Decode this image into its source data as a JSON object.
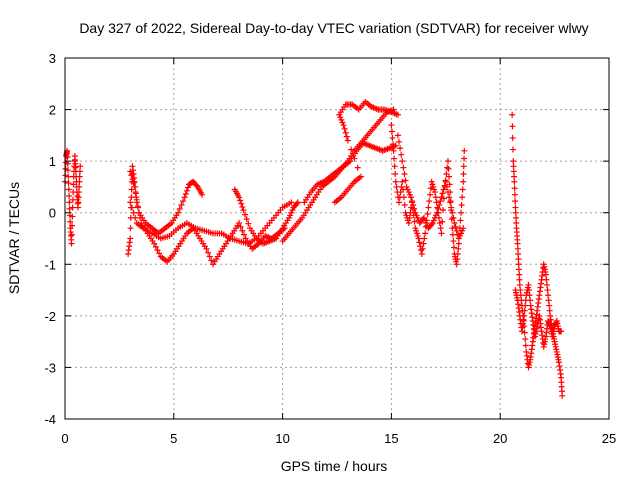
{
  "chart_data": {
    "type": "scatter",
    "title": "Day 327 of 2022, Sidereal Day-to-day VTEC variation (SDTVAR) for receiver wlwy",
    "xlabel": "GPS time / hours",
    "ylabel": "SDTVAR / TECUs",
    "xlim": [
      0,
      25
    ],
    "ylim": [
      -4,
      3
    ],
    "xticks": [
      0,
      5,
      10,
      15,
      20,
      25
    ],
    "yticks": [
      -4,
      -3,
      -2,
      -1,
      0,
      1,
      2,
      3
    ],
    "grid": true,
    "marker": "+",
    "color": "#ff0000",
    "series": [
      {
        "name": "SDTVAR",
        "segments": [
          [
            [
              0.0,
              0.6
            ],
            [
              0.05,
              1.1
            ],
            [
              0.1,
              1.2
            ],
            [
              0.15,
              0.7
            ],
            [
              0.2,
              0.2
            ],
            [
              0.25,
              -0.3
            ],
            [
              0.3,
              -0.6
            ],
            [
              0.35,
              0.1
            ],
            [
              0.4,
              0.7
            ],
            [
              0.45,
              1.1
            ],
            [
              0.5,
              0.8
            ],
            [
              0.55,
              0.4
            ],
            [
              0.6,
              0.1
            ],
            [
              0.65,
              0.5
            ],
            [
              0.7,
              0.9
            ]
          ],
          [
            [
              2.9,
              -0.8
            ],
            [
              3.0,
              -0.5
            ],
            [
              3.05,
              0.3
            ],
            [
              3.1,
              0.9
            ],
            [
              3.2,
              0.6
            ],
            [
              3.3,
              0.2
            ],
            [
              3.5,
              -0.2
            ],
            [
              3.8,
              -0.4
            ],
            [
              4.1,
              -0.6
            ],
            [
              4.4,
              -0.85
            ],
            [
              4.7,
              -0.95
            ],
            [
              5.0,
              -0.8
            ],
            [
              5.3,
              -0.6
            ],
            [
              5.6,
              -0.4
            ],
            [
              5.9,
              -0.3
            ],
            [
              6.2,
              -0.5
            ],
            [
              6.5,
              -0.7
            ],
            [
              6.8,
              -1.0
            ],
            [
              7.1,
              -0.8
            ],
            [
              7.4,
              -0.6
            ],
            [
              7.7,
              -0.4
            ],
            [
              8.0,
              -0.2
            ],
            [
              8.3,
              -0.5
            ],
            [
              8.6,
              -0.7
            ],
            [
              8.9,
              -0.6
            ],
            [
              9.2,
              -0.45
            ],
            [
              9.5,
              -0.5
            ],
            [
              9.8,
              -0.4
            ],
            [
              10.1,
              -0.3
            ]
          ],
          [
            [
              3.0,
              0.2
            ],
            [
              3.3,
              -0.2
            ],
            [
              3.6,
              -0.3
            ],
            [
              4.0,
              -0.4
            ],
            [
              4.4,
              -0.5
            ],
            [
              4.8,
              -0.45
            ],
            [
              5.2,
              -0.3
            ],
            [
              5.6,
              -0.2
            ],
            [
              6.0,
              -0.3
            ],
            [
              6.4,
              -0.35
            ],
            [
              6.8,
              -0.4
            ],
            [
              7.2,
              -0.4
            ],
            [
              7.6,
              -0.5
            ],
            [
              8.0,
              -0.55
            ],
            [
              8.4,
              -0.6
            ],
            [
              8.8,
              -0.5
            ],
            [
              9.2,
              -0.3
            ],
            [
              9.6,
              -0.1
            ],
            [
              10.0,
              0.1
            ],
            [
              10.4,
              0.2
            ]
          ],
          [
            [
              3.0,
              0.8
            ],
            [
              3.2,
              0.5
            ],
            [
              3.4,
              0.0
            ],
            [
              3.7,
              -0.2
            ],
            [
              4.0,
              -0.3
            ],
            [
              4.3,
              -0.4
            ],
            [
              4.6,
              -0.3
            ],
            [
              4.9,
              -0.2
            ],
            [
              5.2,
              0.0
            ],
            [
              5.5,
              0.3
            ],
            [
              5.7,
              0.55
            ],
            [
              5.9,
              0.6
            ],
            [
              6.1,
              0.5
            ],
            [
              6.3,
              0.35
            ]
          ],
          [
            [
              7.8,
              0.45
            ],
            [
              8.0,
              0.3
            ],
            [
              8.2,
              0.05
            ],
            [
              8.5,
              -0.3
            ],
            [
              8.8,
              -0.5
            ],
            [
              9.1,
              -0.6
            ],
            [
              9.4,
              -0.55
            ],
            [
              9.7,
              -0.5
            ],
            [
              10.0,
              -0.3
            ],
            [
              10.3,
              -0.1
            ],
            [
              10.5,
              0.1
            ],
            [
              10.7,
              0.2
            ]
          ],
          [
            [
              10.0,
              -0.55
            ],
            [
              10.3,
              -0.4
            ],
            [
              10.6,
              -0.25
            ],
            [
              10.9,
              -0.1
            ],
            [
              11.2,
              0.1
            ],
            [
              11.5,
              0.3
            ],
            [
              11.8,
              0.5
            ],
            [
              12.1,
              0.6
            ],
            [
              12.4,
              0.7
            ],
            [
              12.7,
              0.85
            ],
            [
              13.0,
              1.0
            ],
            [
              13.3,
              1.2
            ],
            [
              13.6,
              1.35
            ],
            [
              13.9,
              1.5
            ],
            [
              14.2,
              1.65
            ],
            [
              14.5,
              1.8
            ],
            [
              14.8,
              1.95
            ],
            [
              15.1,
              2.0
            ]
          ],
          [
            [
              11.0,
              0.2
            ],
            [
              11.3,
              0.4
            ],
            [
              11.6,
              0.55
            ],
            [
              11.9,
              0.6
            ],
            [
              12.2,
              0.7
            ],
            [
              12.5,
              0.8
            ],
            [
              12.8,
              0.9
            ],
            [
              13.1,
              1.0
            ],
            [
              13.4,
              1.2
            ],
            [
              13.7,
              1.35
            ],
            [
              14.0,
              1.3
            ],
            [
              14.3,
              1.25
            ],
            [
              14.6,
              1.2
            ],
            [
              14.9,
              1.25
            ],
            [
              15.2,
              1.3
            ]
          ],
          [
            [
              12.4,
              0.2
            ],
            [
              12.7,
              0.3
            ],
            [
              13.0,
              0.45
            ],
            [
              13.3,
              0.6
            ],
            [
              13.6,
              0.7
            ],
            [
              13.0,
              1.4
            ],
            [
              12.8,
              1.7
            ],
            [
              12.6,
              1.9
            ],
            [
              12.9,
              2.1
            ],
            [
              13.2,
              2.1
            ],
            [
              13.5,
              2.0
            ],
            [
              13.8,
              2.15
            ],
            [
              14.1,
              2.05
            ],
            [
              14.4,
              2.0
            ],
            [
              14.7,
              2.0
            ],
            [
              15.0,
              1.95
            ],
            [
              15.3,
              1.9
            ]
          ],
          [
            [
              15.0,
              1.7
            ],
            [
              15.1,
              1.2
            ],
            [
              15.2,
              0.6
            ],
            [
              15.35,
              0.2
            ],
            [
              15.5,
              0.6
            ],
            [
              15.65,
              0.0
            ],
            [
              15.8,
              -0.2
            ],
            [
              15.95,
              0.2
            ],
            [
              16.1,
              -0.3
            ],
            [
              16.25,
              -0.5
            ],
            [
              16.4,
              -0.8
            ],
            [
              16.55,
              -0.4
            ],
            [
              16.7,
              0.1
            ],
            [
              16.85,
              0.6
            ],
            [
              17.0,
              0.4
            ],
            [
              17.15,
              0.0
            ],
            [
              17.3,
              -0.4
            ],
            [
              17.45,
              0.5
            ],
            [
              17.6,
              1.0
            ],
            [
              17.7,
              0.4
            ],
            [
              17.8,
              -0.3
            ],
            [
              17.9,
              -0.8
            ],
            [
              18.0,
              -1.0
            ],
            [
              18.1,
              -0.6
            ],
            [
              18.2,
              0.0
            ],
            [
              18.3,
              0.6
            ],
            [
              18.35,
              1.2
            ]
          ],
          [
            [
              15.3,
              1.5
            ],
            [
              15.5,
              1.0
            ],
            [
              15.7,
              0.5
            ],
            [
              15.9,
              0.3
            ],
            [
              16.1,
              0.0
            ],
            [
              16.3,
              -0.2
            ],
            [
              16.5,
              -0.1
            ],
            [
              16.7,
              -0.3
            ],
            [
              16.9,
              -0.2
            ],
            [
              17.1,
              0.0
            ],
            [
              17.3,
              0.3
            ],
            [
              17.5,
              0.6
            ],
            [
              17.7,
              0.2
            ],
            [
              17.9,
              -0.2
            ],
            [
              18.1,
              -0.5
            ],
            [
              18.3,
              -0.3
            ]
          ],
          [
            [
              20.55,
              1.9
            ],
            [
              20.6,
              1.0
            ],
            [
              20.65,
              0.6
            ],
            [
              20.7,
              0.1
            ],
            [
              20.75,
              -0.3
            ],
            [
              20.8,
              -0.6
            ],
            [
              20.85,
              -1.0
            ],
            [
              20.9,
              -1.4
            ],
            [
              21.0,
              -1.8
            ],
            [
              21.1,
              -2.2
            ],
            [
              21.2,
              -2.7
            ],
            [
              21.3,
              -3.0
            ],
            [
              21.4,
              -2.8
            ],
            [
              21.5,
              -2.5
            ],
            [
              21.6,
              -2.2
            ],
            [
              21.7,
              -1.9
            ],
            [
              21.8,
              -1.6
            ],
            [
              21.9,
              -1.3
            ],
            [
              22.0,
              -1.0
            ],
            [
              22.1,
              -1.2
            ],
            [
              22.2,
              -1.6
            ],
            [
              22.3,
              -2.0
            ],
            [
              22.4,
              -2.3
            ],
            [
              22.5,
              -2.5
            ],
            [
              22.6,
              -2.7
            ],
            [
              22.7,
              -2.9
            ],
            [
              22.8,
              -3.2
            ],
            [
              22.85,
              -3.55
            ]
          ],
          [
            [
              20.7,
              -1.5
            ],
            [
              20.8,
              -1.7
            ],
            [
              20.9,
              -2.0
            ],
            [
              21.0,
              -2.3
            ],
            [
              21.1,
              -2.0
            ],
            [
              21.2,
              -1.6
            ],
            [
              21.3,
              -1.4
            ],
            [
              21.4,
              -1.8
            ],
            [
              21.5,
              -2.1
            ],
            [
              21.6,
              -2.4
            ],
            [
              21.7,
              -2.2
            ],
            [
              21.8,
              -2.0
            ],
            [
              21.9,
              -2.3
            ],
            [
              22.0,
              -2.6
            ],
            [
              22.1,
              -2.4
            ],
            [
              22.2,
              -2.1
            ],
            [
              22.3,
              -2.2
            ],
            [
              22.4,
              -2.4
            ],
            [
              22.5,
              -2.2
            ],
            [
              22.6,
              -2.1
            ],
            [
              22.7,
              -2.3
            ],
            [
              22.8,
              -2.3
            ]
          ]
        ]
      }
    ]
  }
}
